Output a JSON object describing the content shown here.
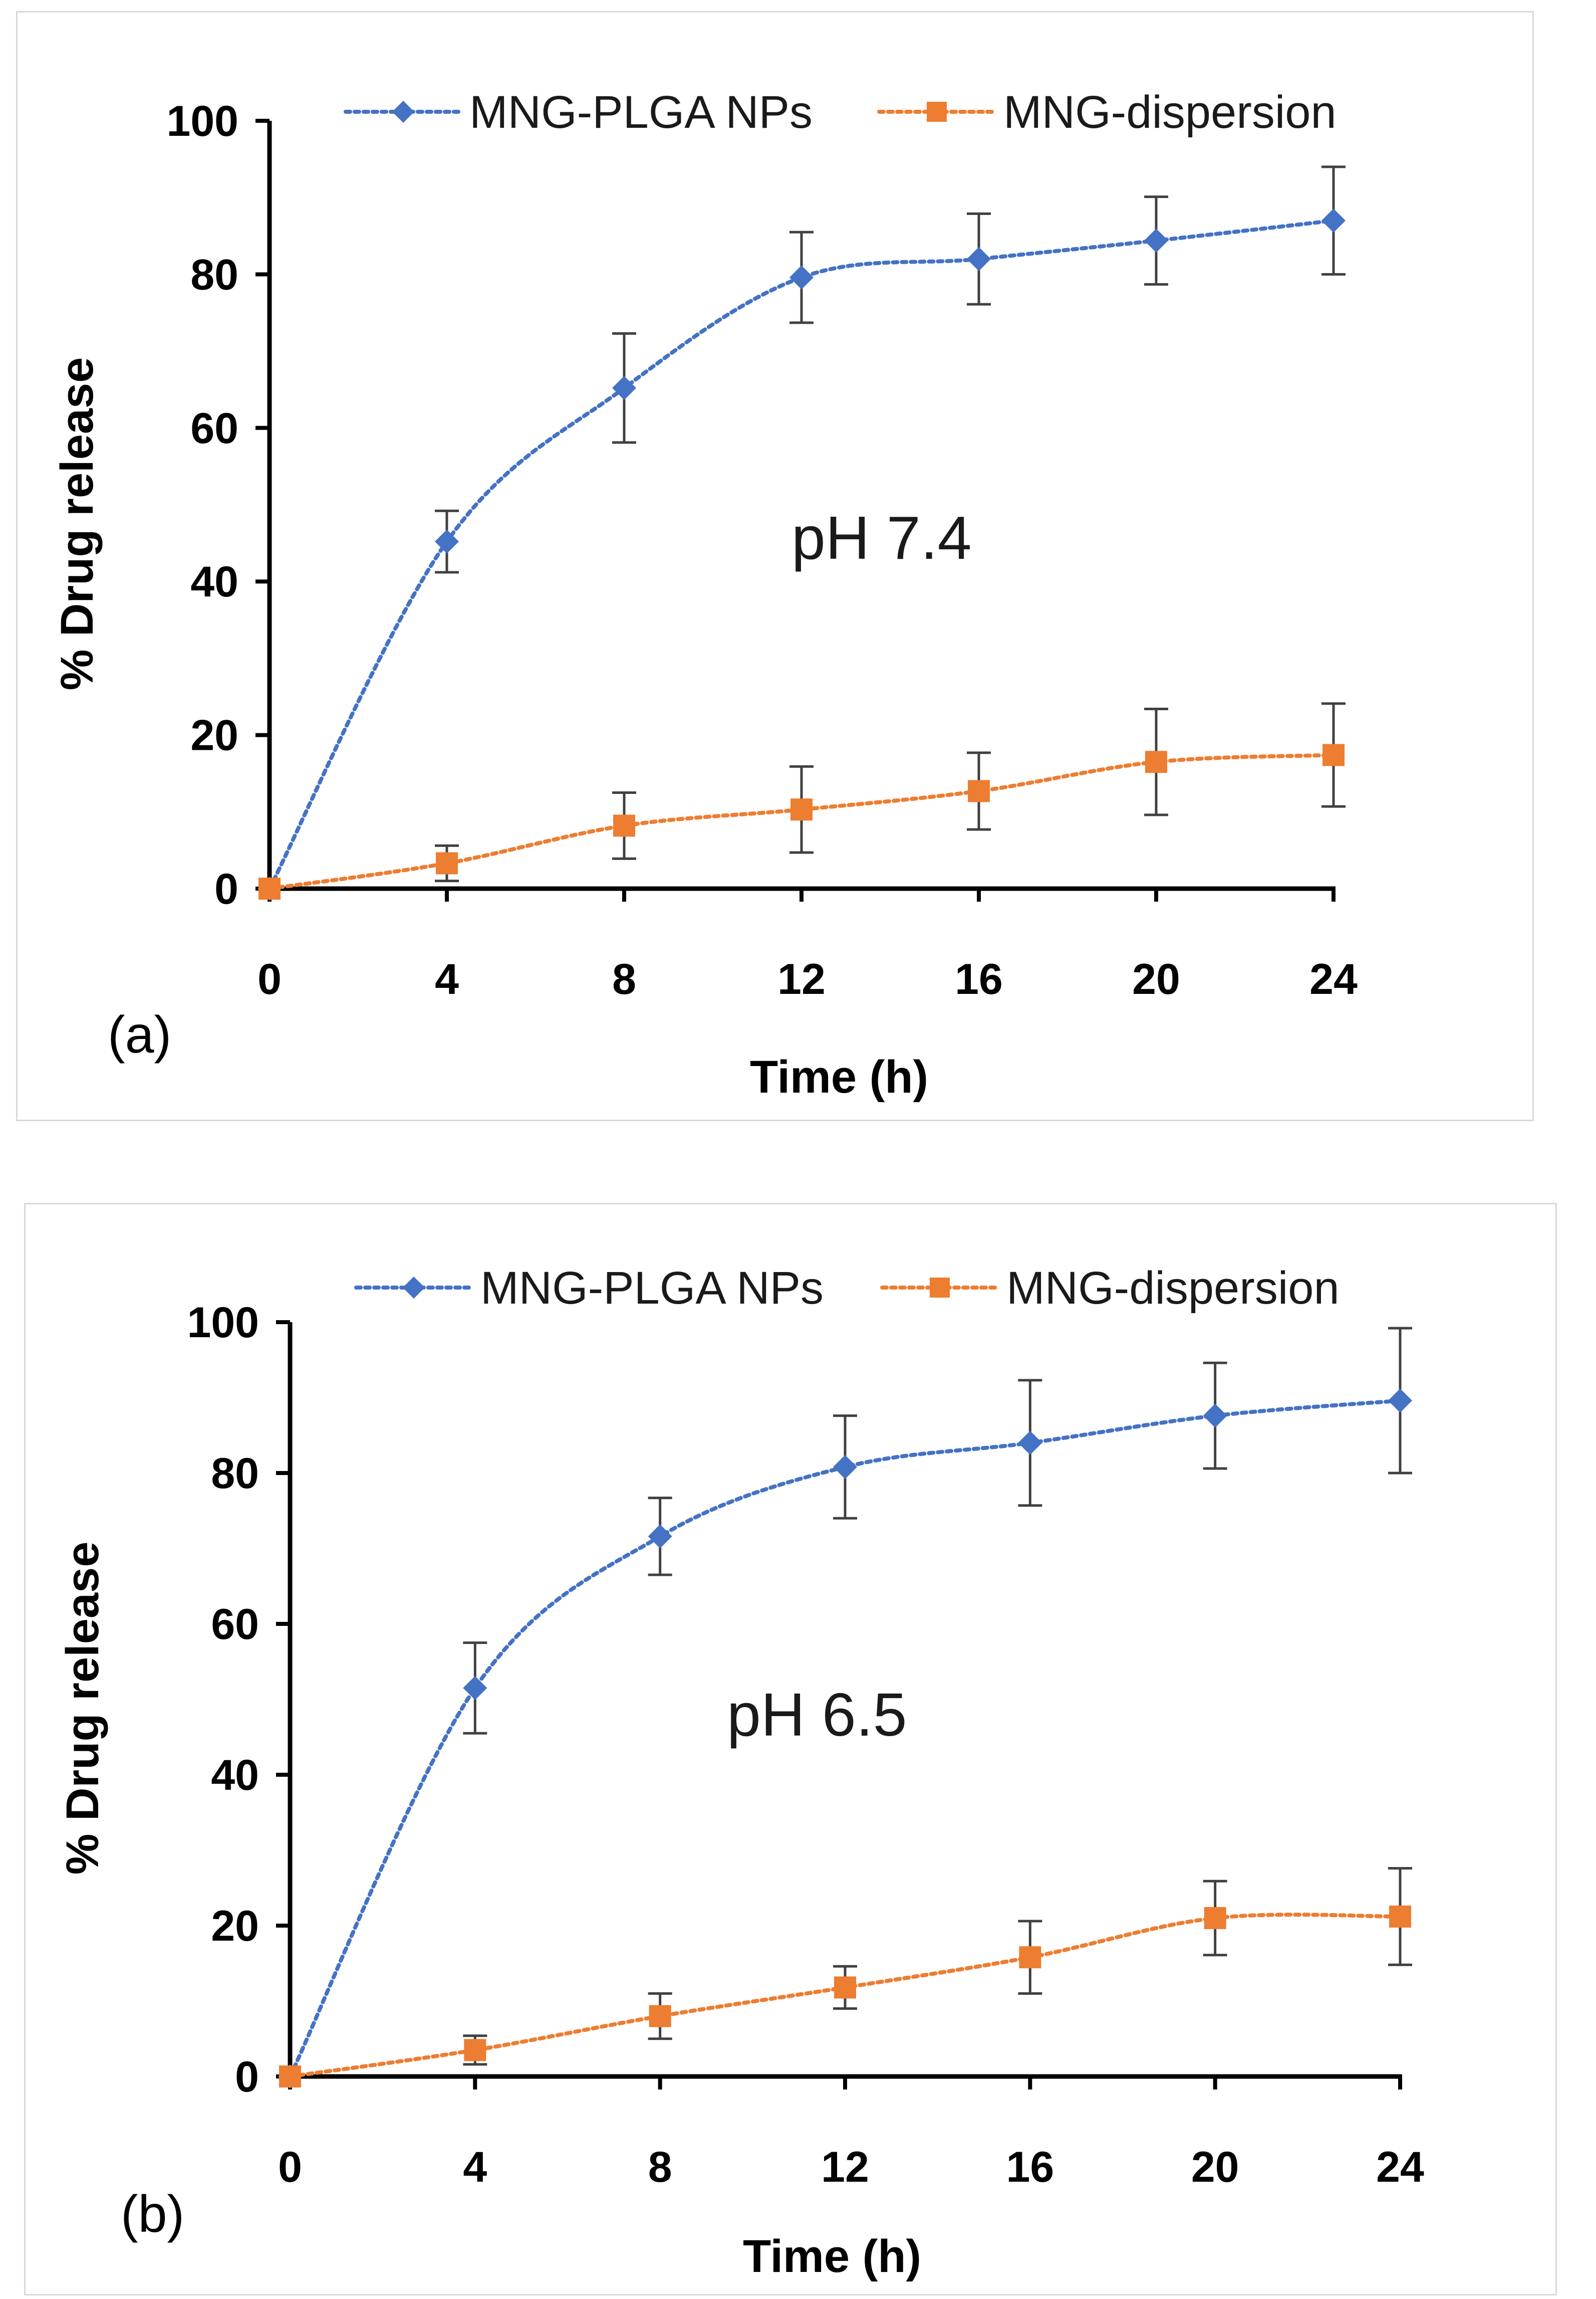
{
  "chart_data": [
    {
      "type": "line",
      "panel_label": "(a)",
      "annotation": "pH 7.4",
      "xlabel": "Time (h)",
      "ylabel": "% Drug release",
      "x": [
        0,
        4,
        8,
        12,
        16,
        20,
        24
      ],
      "xticks": [
        "0",
        "4",
        "8",
        "12",
        "16",
        "20",
        "24"
      ],
      "yticks": [
        "0",
        "20",
        "40",
        "60",
        "80",
        "100"
      ],
      "xlim": [
        0,
        24
      ],
      "ylim": [
        0,
        100
      ],
      "legend_position": "top",
      "series": [
        {
          "name": "MNG-PLGA NPs",
          "color": "#4472C4",
          "marker": "diamond",
          "values": [
            0,
            45.2,
            65.2,
            79.6,
            82.0,
            84.4,
            87.0
          ],
          "errors": [
            0,
            4.0,
            7.1,
            5.9,
            5.9,
            5.7,
            7.0
          ]
        },
        {
          "name": "MNG-dispersion",
          "color": "#ED7D31",
          "marker": "square",
          "values": [
            0,
            3.3,
            8.2,
            10.3,
            12.7,
            16.5,
            17.4
          ],
          "errors": [
            0,
            2.3,
            4.3,
            5.6,
            5.0,
            6.9,
            6.7
          ]
        }
      ]
    },
    {
      "type": "line",
      "panel_label": "(b)",
      "annotation": "pH 6.5",
      "xlabel": "Time (h)",
      "ylabel": "% Drug release",
      "x": [
        0,
        4,
        8,
        12,
        16,
        20,
        24
      ],
      "xticks": [
        "0",
        "4",
        "8",
        "12",
        "16",
        "20",
        "24"
      ],
      "yticks": [
        "0",
        "20",
        "40",
        "60",
        "80",
        "100"
      ],
      "xlim": [
        0,
        24
      ],
      "ylim": [
        0,
        100
      ],
      "legend_position": "top",
      "series": [
        {
          "name": "MNG-PLGA NPs",
          "color": "#4472C4",
          "marker": "diamond",
          "values": [
            0,
            51.5,
            71.6,
            80.8,
            84.0,
            87.6,
            89.6
          ],
          "errors": [
            0,
            6.0,
            5.1,
            6.8,
            8.3,
            7.0,
            9.6
          ]
        },
        {
          "name": "MNG-dispersion",
          "color": "#ED7D31",
          "marker": "square",
          "values": [
            0,
            3.5,
            8.0,
            11.8,
            15.8,
            21.0,
            21.2
          ],
          "errors": [
            0,
            1.9,
            3.0,
            2.8,
            4.8,
            4.9,
            6.4
          ]
        }
      ]
    }
  ]
}
